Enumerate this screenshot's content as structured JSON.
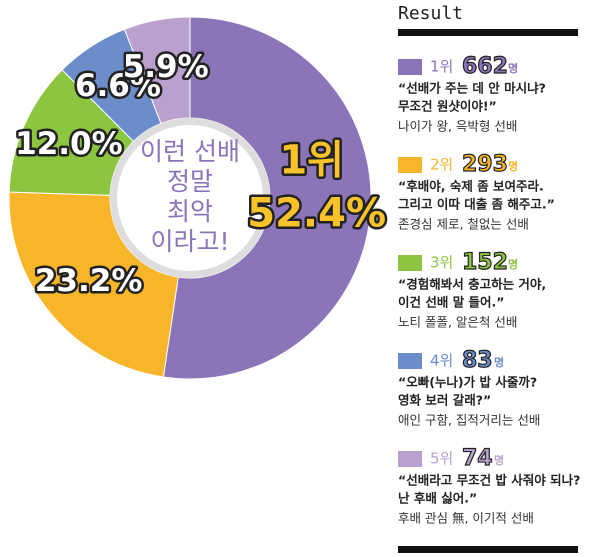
{
  "chart_data": {
    "type": "donut",
    "title": "Result",
    "center_text": [
      "이런 선배",
      "정말",
      "최악",
      "이라고!"
    ],
    "values": [
      52.4,
      23.2,
      12.0,
      6.6,
      5.9
    ],
    "value_labels": [
      "52.4%",
      "23.2%",
      "12.0%",
      "6.6%",
      "5.9%"
    ],
    "colors": [
      "#8b74b8",
      "#f7b52a",
      "#8cc540",
      "#6b8dca",
      "#b9a0cf"
    ],
    "legend": {
      "items": [
        {
          "rank": "1위",
          "count": 662,
          "unit": "명",
          "quote": [
            "“선배가 주는 데 안 마시냐?",
            "무조건 원샷이야!”"
          ],
          "description": "나이가 왕, 윽박형 선배"
        },
        {
          "rank": "2위",
          "count": 293,
          "unit": "명",
          "quote": [
            "“후배야, 숙제 좀 보여주라.",
            "그리고 이따 대출 좀 해주고.”"
          ],
          "description": "존경심 제로, 철없는 선배"
        },
        {
          "rank": "3위",
          "count": 152,
          "unit": "명",
          "quote": [
            "“경험해봐서 충고하는 거야,",
            "이건 선배 말 들어.”"
          ],
          "description": "노티 폴폴, 알은척 선배"
        },
        {
          "rank": "4위",
          "count": 83,
          "unit": "명",
          "quote": [
            "“오빠(누나)가 밥 사줄까?",
            "영화 보러 갈래?”"
          ],
          "description": "애인 구함, 집적거리는 선배"
        },
        {
          "rank": "5위",
          "count": 74,
          "unit": "명",
          "quote": [
            "“선배라고 무조건 밥 사줘야 되나?",
            "난 후배 싫어.”"
          ],
          "description": "후배 관심 無, 이기적 선배"
        }
      ]
    }
  }
}
